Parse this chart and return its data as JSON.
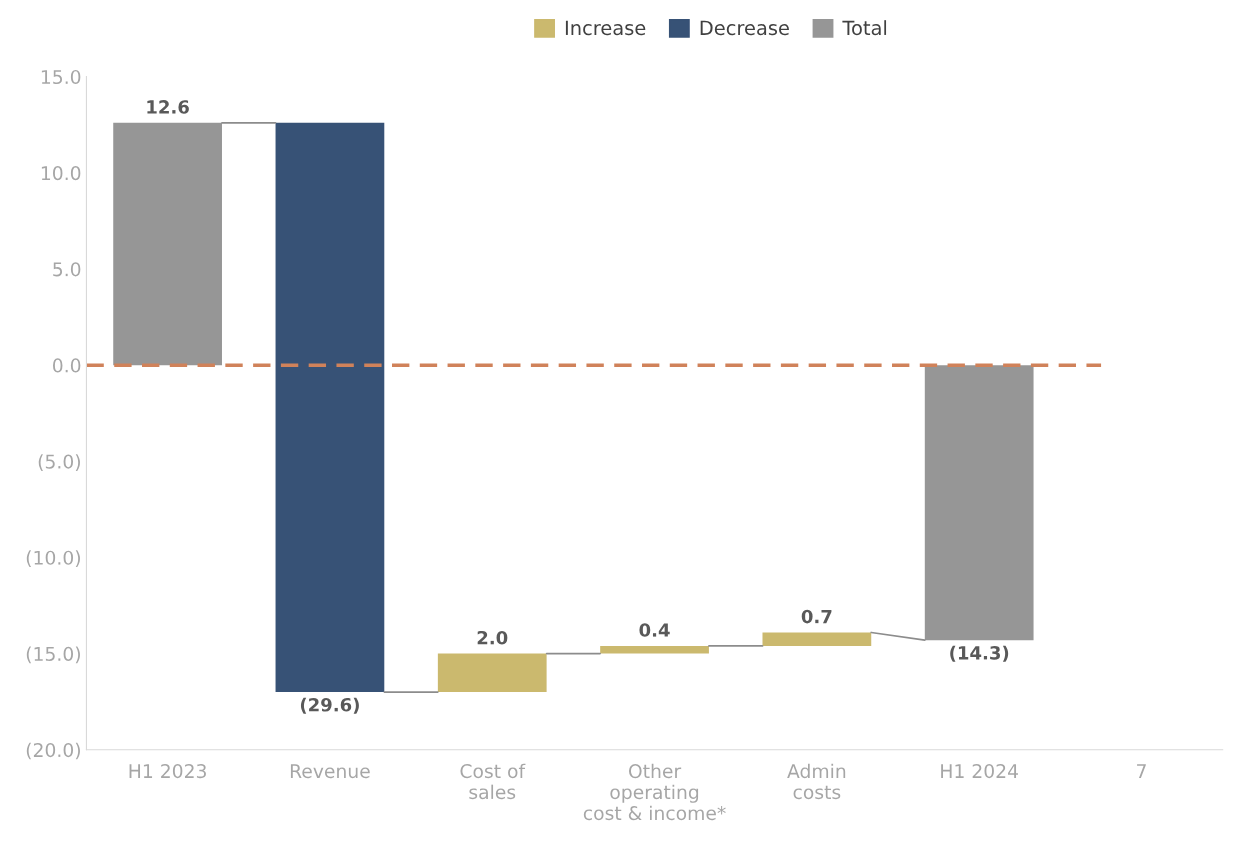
{
  "chart_data": {
    "type": "bar",
    "categories": [
      "H1 2023",
      "Revenue",
      "Cost of\nsales",
      "Other\noperating\ncost & income*",
      "Admin\ncosts",
      "H1 2024",
      "7"
    ],
    "series": [
      {
        "name": "Increase",
        "color": "#cbb96e",
        "values": [
          null,
          null,
          2.0,
          0.4,
          0.7,
          null,
          null
        ],
        "base": [
          null,
          null,
          -17.0,
          -15.0,
          -14.6,
          null,
          null
        ],
        "value_labels": [
          null,
          null,
          "2.0",
          "0.4",
          "0.7",
          null,
          null
        ]
      },
      {
        "name": "Decrease",
        "color": "#375276",
        "values": [
          null,
          -29.6,
          null,
          null,
          null,
          null,
          null
        ],
        "base": [
          null,
          12.6,
          null,
          null,
          null,
          null,
          null
        ],
        "value_labels": [
          null,
          "(29.6)",
          null,
          null,
          null,
          null,
          null
        ]
      },
      {
        "name": "Total",
        "color": "#969696",
        "values": [
          12.6,
          null,
          null,
          null,
          null,
          -14.3,
          null
        ],
        "base": [
          0,
          null,
          null,
          null,
          null,
          0,
          null
        ],
        "value_labels": [
          "12.6",
          null,
          null,
          null,
          null,
          "(14.3)",
          null
        ]
      }
    ],
    "ylim": [
      -20,
      15
    ],
    "yticks": [
      {
        "value": -20,
        "label": "(20.0)"
      },
      {
        "value": -15,
        "label": "(15.0)"
      },
      {
        "value": -10,
        "label": "(10.0)"
      },
      {
        "value": -5,
        "label": "(5.0)"
      },
      {
        "value": 0,
        "label": "0.0"
      },
      {
        "value": 5,
        "label": "5.0"
      },
      {
        "value": 10,
        "label": "10.0"
      },
      {
        "value": 15,
        "label": "15.0"
      }
    ],
    "ref_lines": [
      {
        "axis": "y",
        "value": 0,
        "color": "#d0825a",
        "line_style": "dashed"
      }
    ],
    "legend": "top",
    "grid": false
  }
}
